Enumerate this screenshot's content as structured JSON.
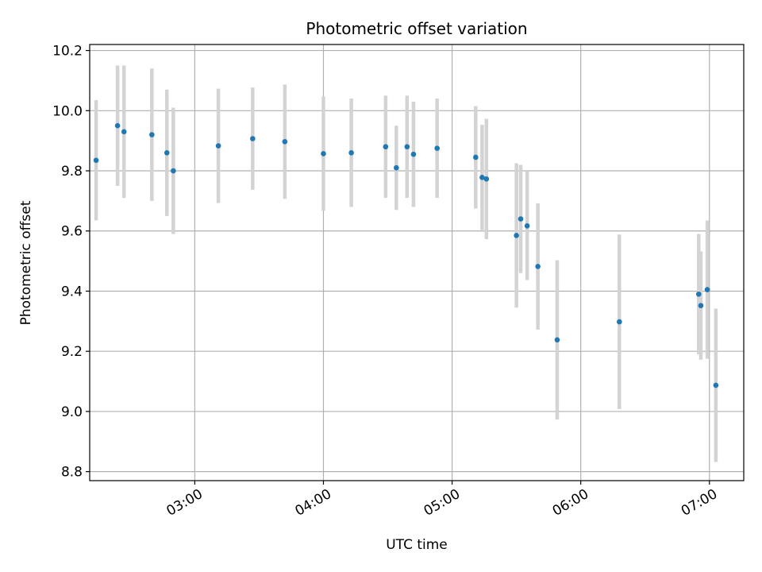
{
  "chart_data": {
    "type": "scatter",
    "title": "Photometric offset variation",
    "xlabel": "UTC time",
    "ylabel": "Photometric offset",
    "x_ticks": [
      "03:00",
      "04:00",
      "05:00",
      "06:00",
      "07:00"
    ],
    "x_tick_values": [
      "03:00",
      "04:00",
      "05:00",
      "06:00",
      "07:00"
    ],
    "y_ticks": [
      "8.8",
      "9.0",
      "9.2",
      "9.4",
      "9.6",
      "9.8",
      "10.0",
      "10.2"
    ],
    "y_tick_values": [
      8.8,
      9.0,
      9.2,
      9.4,
      9.6,
      9.8,
      10.0,
      10.2
    ],
    "xlim": [
      "02:11",
      "07:16"
    ],
    "ylim": [
      8.77,
      10.22
    ],
    "grid": true,
    "colors": {
      "point": "#1f77b4",
      "errorbar": "#d3d3d3",
      "grid": "#b0b0b0"
    },
    "points": [
      {
        "x": "02:14",
        "y": 9.835,
        "err": 0.2
      },
      {
        "x": "02:24",
        "y": 9.95,
        "err": 0.2
      },
      {
        "x": "02:27",
        "y": 9.93,
        "err": 0.22
      },
      {
        "x": "02:40",
        "y": 9.92,
        "err": 0.22
      },
      {
        "x": "02:47",
        "y": 9.86,
        "err": 0.21
      },
      {
        "x": "02:50",
        "y": 9.8,
        "err": 0.21
      },
      {
        "x": "03:11",
        "y": 9.883,
        "err": 0.19
      },
      {
        "x": "03:27",
        "y": 9.907,
        "err": 0.17
      },
      {
        "x": "03:42",
        "y": 9.897,
        "err": 0.19
      },
      {
        "x": "04:00",
        "y": 9.857,
        "err": 0.19
      },
      {
        "x": "04:13",
        "y": 9.86,
        "err": 0.18
      },
      {
        "x": "04:29",
        "y": 9.88,
        "err": 0.17
      },
      {
        "x": "04:34",
        "y": 9.81,
        "err": 0.14
      },
      {
        "x": "04:39",
        "y": 9.88,
        "err": 0.17
      },
      {
        "x": "04:42",
        "y": 9.855,
        "err": 0.175
      },
      {
        "x": "04:53",
        "y": 9.875,
        "err": 0.165
      },
      {
        "x": "05:11",
        "y": 9.845,
        "err": 0.17
      },
      {
        "x": "05:14",
        "y": 9.778,
        "err": 0.175
      },
      {
        "x": "05:16",
        "y": 9.773,
        "err": 0.2
      },
      {
        "x": "05:30",
        "y": 9.585,
        "err": 0.24
      },
      {
        "x": "05:32",
        "y": 9.64,
        "err": 0.18
      },
      {
        "x": "05:35",
        "y": 9.617,
        "err": 0.18
      },
      {
        "x": "05:40",
        "y": 9.482,
        "err": 0.21
      },
      {
        "x": "05:49",
        "y": 9.238,
        "err": 0.265
      },
      {
        "x": "06:18",
        "y": 9.298,
        "err": 0.29
      },
      {
        "x": "06:55",
        "y": 9.39,
        "err": 0.2
      },
      {
        "x": "06:56",
        "y": 9.352,
        "err": 0.18
      },
      {
        "x": "06:59",
        "y": 9.405,
        "err": 0.23
      },
      {
        "x": "07:03",
        "y": 9.087,
        "err": 0.255
      }
    ]
  }
}
